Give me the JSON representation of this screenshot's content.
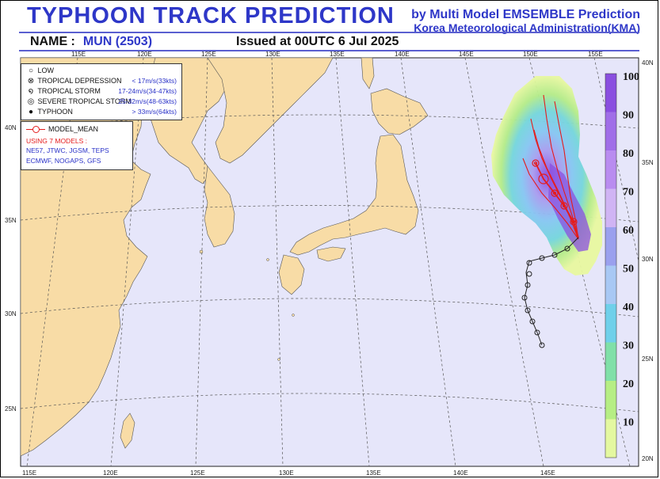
{
  "header": {
    "title": "TYPHOON  TRACK  PREDICTION",
    "credit_line1": "by Multi Model EMSEMBLE Prediction",
    "credit_line2": "Korea Meteorological Administration(KMA)",
    "name_label": "NAME :",
    "name_value": "MUN (2503)",
    "issued": "Issued at  00UTC  6 Jul 2025"
  },
  "legend": {
    "low": "LOW",
    "td": "TROPICAL DEPRESSION",
    "td_range": "< 17m/s(33kts)",
    "ts": "TROPICAL STORM",
    "ts_range": "17-24m/s(34-47kts)",
    "sts": "SEVERE TROPICAL STORM",
    "sts_range": "25-32m/s(48-63kts)",
    "ty": "TYPHOON",
    "ty_range": "> 33m/s(64kts)"
  },
  "models": {
    "mean_label": "MODEL_MEAN",
    "using": "USING 7 MODELS :",
    "line1": "NE57, JTWC, JGSM, TEPS",
    "line2": "ECMWF, NOGAPS, GFS"
  },
  "axes": {
    "top": [
      "115E",
      "120E",
      "125E",
      "130E",
      "135E",
      "140E",
      "145E",
      "150E",
      "155E"
    ],
    "bottom": [
      "115E",
      "120E",
      "125E",
      "130E",
      "135E",
      "140E",
      "145E"
    ],
    "left": [
      "40N",
      "35N",
      "30N",
      "25N"
    ],
    "right": [
      "40N",
      "35N",
      "30N",
      "25N",
      "20N"
    ]
  },
  "colorbar": {
    "labels": [
      "100",
      "90",
      "80",
      "70",
      "60",
      "50",
      "40",
      "30",
      "20",
      "10"
    ],
    "colors": [
      "#8a4fe0",
      "#a06ee8",
      "#b98cf0",
      "#d0b4f4",
      "#9aa0ee",
      "#a8c8f4",
      "#6fd0ea",
      "#80e0a8",
      "#b6ee84",
      "#e4f8a0"
    ]
  },
  "colors": {
    "title": "#2e37c8",
    "land": "#f8dca6",
    "sea": "#e6e6fa",
    "model_mean": "#e51c1c"
  }
}
